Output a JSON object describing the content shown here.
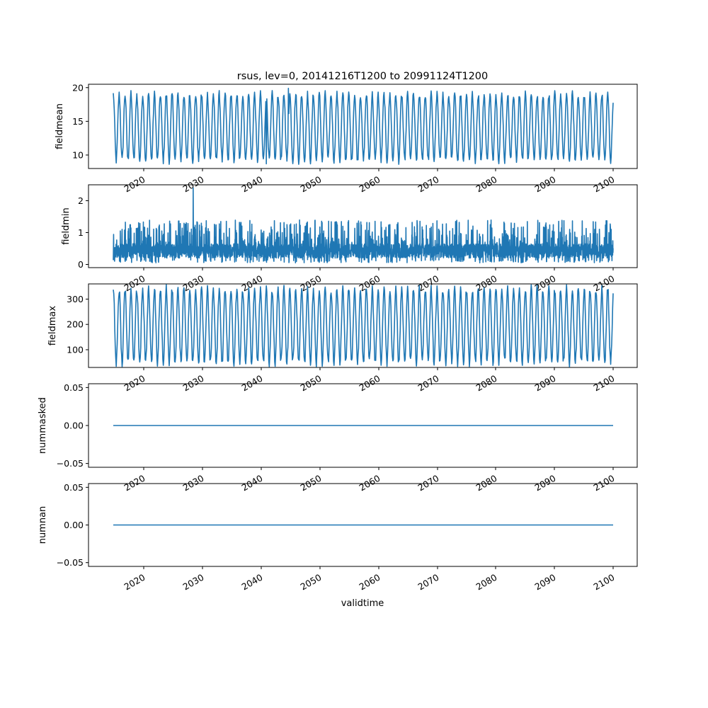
{
  "figure": {
    "title": "rsus, lev=0, 20141216T1200 to 20991124T1200",
    "xlabel": "validtime"
  },
  "colors": {
    "line": "#1f77b4",
    "axes": "#000000",
    "background": "#ffffff"
  },
  "chart_data": [
    {
      "type": "line",
      "ylabel": "fieldmean",
      "x_ticks": [
        "2020",
        "2030",
        "2040",
        "2050",
        "2060",
        "2070",
        "2080",
        "2090",
        "2100"
      ],
      "y_ticks": [
        "10",
        "15",
        "20"
      ],
      "ylim": [
        8,
        20.5
      ],
      "x_range": [
        "2014-12-16",
        "2099-11-24"
      ],
      "seasonal_cycle": {
        "period_years": 1,
        "min": 9.2,
        "max": 19.0
      },
      "extremes": {
        "max": 19.9,
        "min": 8.7
      },
      "grid": false
    },
    {
      "type": "line",
      "ylabel": "fieldmin",
      "x_ticks": [
        "2020",
        "2030",
        "2040",
        "2050",
        "2060",
        "2070",
        "2080",
        "2090",
        "2100"
      ],
      "y_ticks": [
        "0",
        "1",
        "2"
      ],
      "ylim": [
        -0.1,
        2.5
      ],
      "x_range": [
        "2014-12-16",
        "2099-11-24"
      ],
      "typical_range": {
        "min": 0.05,
        "max": 1.4
      },
      "extremes": {
        "max": 2.4,
        "min": 0.0
      },
      "grid": false
    },
    {
      "type": "line",
      "ylabel": "fieldmax",
      "x_ticks": [
        "2020",
        "2030",
        "2040",
        "2050",
        "2060",
        "2070",
        "2080",
        "2090",
        "2100"
      ],
      "y_ticks": [
        "100",
        "200",
        "300"
      ],
      "ylim": [
        30,
        360
      ],
      "x_range": [
        "2014-12-16",
        "2099-11-24"
      ],
      "seasonal_cycle": {
        "period_years": 1,
        "min": 50,
        "max": 340
      },
      "grid": false
    },
    {
      "type": "line",
      "ylabel": "nummasked",
      "x_ticks": [
        "2020",
        "2030",
        "2040",
        "2050",
        "2060",
        "2070",
        "2080",
        "2090",
        "2100"
      ],
      "y_ticks": [
        "−0.05",
        "0.00",
        "0.05"
      ],
      "ylim": [
        -0.055,
        0.055
      ],
      "x": [
        "2014-12-16",
        "2099-11-24"
      ],
      "y": [
        0.0,
        0.0
      ],
      "grid": false
    },
    {
      "type": "line",
      "ylabel": "numnan",
      "x_ticks": [
        "2020",
        "2030",
        "2040",
        "2050",
        "2060",
        "2070",
        "2080",
        "2090",
        "2100"
      ],
      "y_ticks": [
        "−0.05",
        "0.00",
        "0.05"
      ],
      "ylim": [
        -0.055,
        0.055
      ],
      "x": [
        "2014-12-16",
        "2099-11-24"
      ],
      "y": [
        0.0,
        0.0
      ],
      "grid": false
    }
  ]
}
